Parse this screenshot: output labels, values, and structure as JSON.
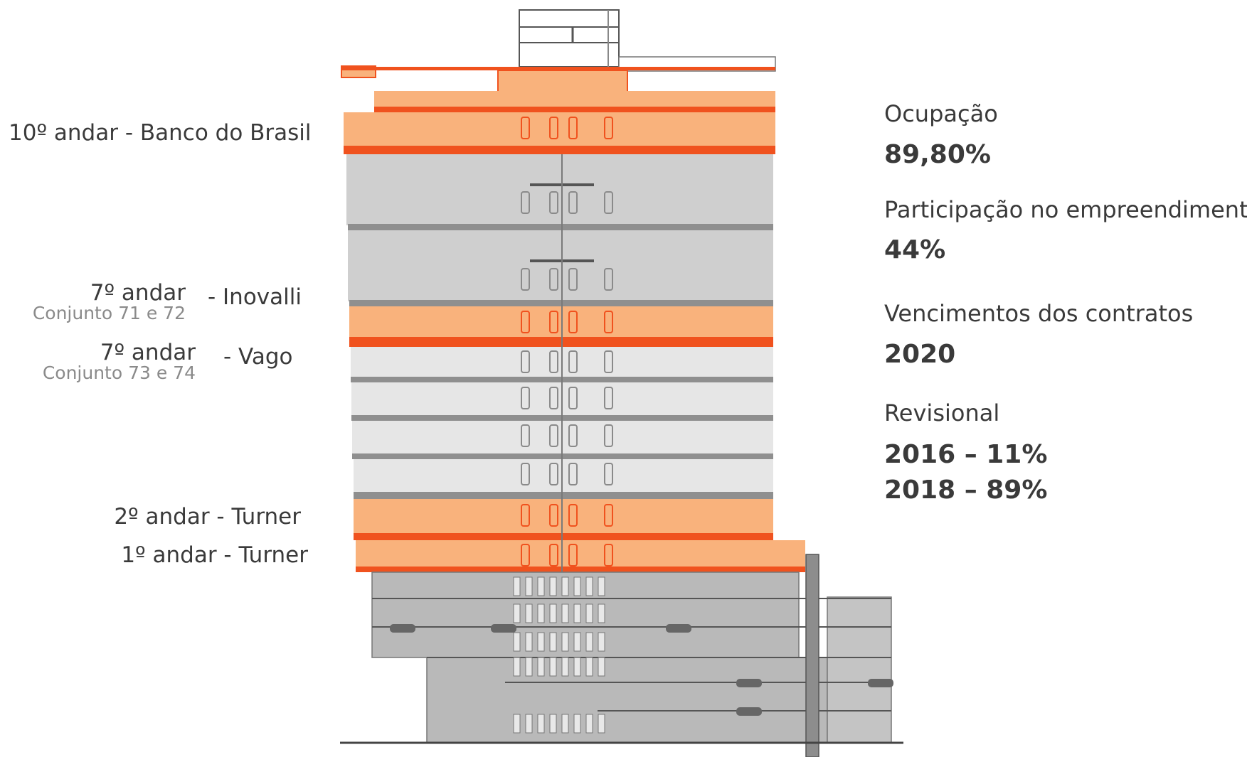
{
  "floor_labels": {
    "floor10": "10º andar  - Banco do Brasil",
    "floor7a_title": "7º andar",
    "floor7a_sub": "Conjunto 71 e 72",
    "floor7a_tenant": "- Inovalli",
    "floor7b_title": "7º andar",
    "floor7b_sub": "Conjunto 73 e 74",
    "floor7b_tenant": "- Vago",
    "floor2": "2º andar - Turner",
    "floor1": "1º andar - Turner"
  },
  "stats": {
    "occupancy_label": "Ocupação",
    "occupancy_value": "89,80%",
    "share_label": "Participação no empreendimento",
    "share_value": "44%",
    "expiry_label": "Vencimentos dos contratos",
    "expiry_value": "2020",
    "revision_label": "Revisional",
    "revision_value_1": "2016 – 11%",
    "revision_value_2": "2018 – 89%"
  },
  "colors": {
    "occupied_fill": "#f9b27c",
    "occupied_line": "#f0521e",
    "floor_gray": "#cfcfcf",
    "floor_light": "#e6e6e6",
    "parking_gray": "#b9b9b9",
    "text": "#3a3a3a",
    "subtext": "#8a8a8a"
  },
  "highlighted_floors": [
    "floor-10",
    "floor-7-conj-71-72",
    "floor-2",
    "floor-1"
  ]
}
